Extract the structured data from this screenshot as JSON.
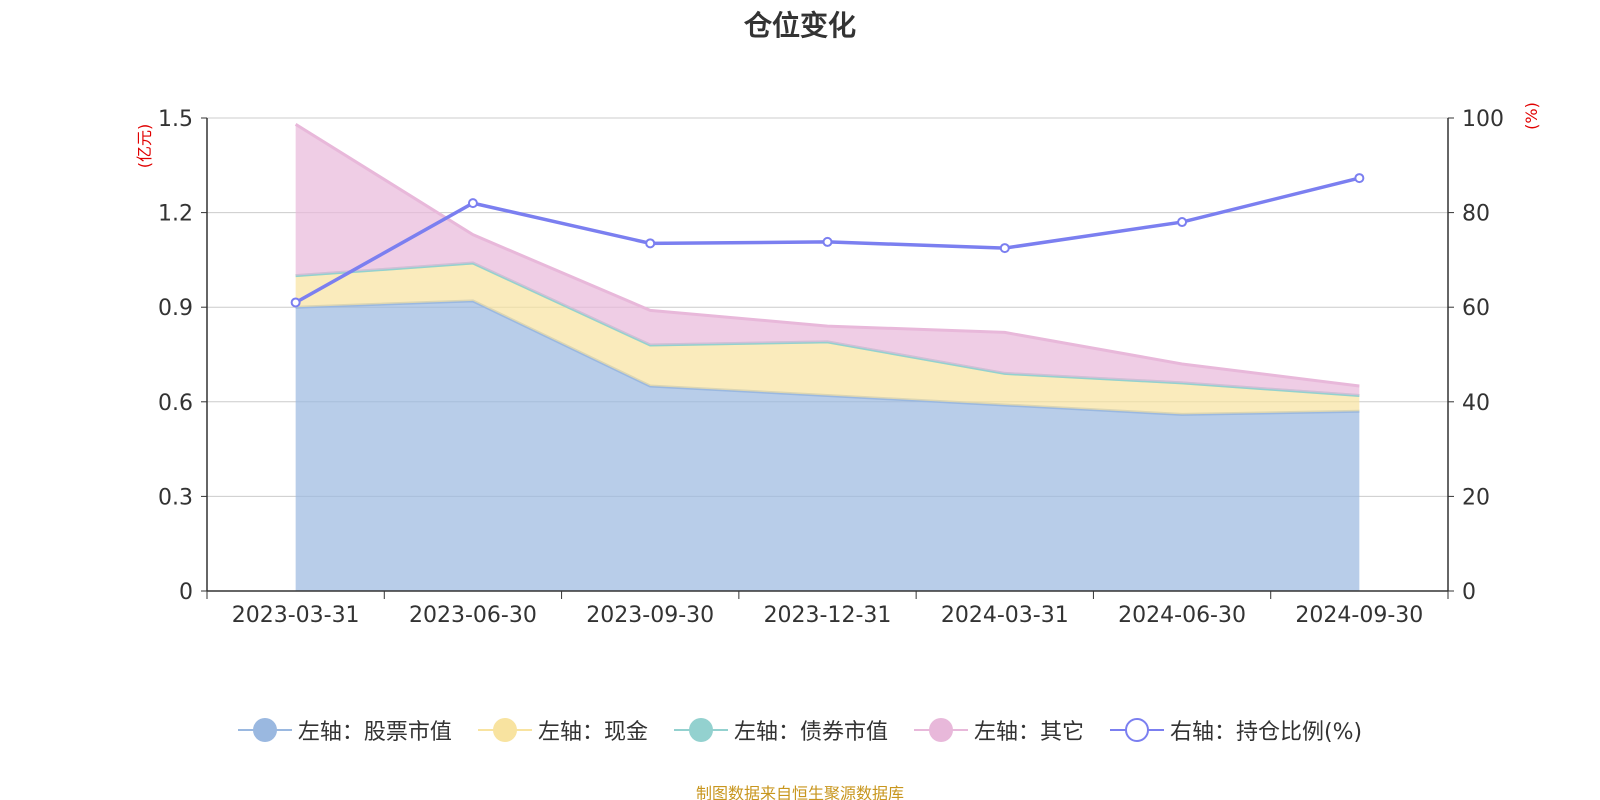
{
  "chart_data": {
    "type": "area",
    "title": "仓位变化",
    "categories": [
      "2023-03-31",
      "2023-06-30",
      "2023-09-30",
      "2023-12-31",
      "2024-03-31",
      "2024-06-30",
      "2024-09-30"
    ],
    "left_axis": {
      "unit": "(亿元)",
      "ylim": [
        0,
        1.5
      ],
      "ticks": [
        "0",
        "0.3",
        "0.6",
        "0.9",
        "1.2",
        "1.5"
      ],
      "tick_values": [
        0,
        0.3,
        0.6,
        0.9,
        1.2,
        1.5
      ]
    },
    "right_axis": {
      "unit": "(%)",
      "ylim": [
        0,
        100
      ],
      "ticks": [
        "0",
        "20",
        "40",
        "60",
        "80",
        "100"
      ],
      "tick_values": [
        0,
        20,
        40,
        60,
        80,
        100
      ]
    },
    "series": [
      {
        "name": "左轴：股票市值",
        "axis": "left",
        "stacked": true,
        "kind": "area",
        "color": "#9ab8e0",
        "values": [
          0.9,
          0.92,
          0.65,
          0.62,
          0.59,
          0.56,
          0.57
        ]
      },
      {
        "name": "左轴：现金",
        "axis": "left",
        "stacked": true,
        "kind": "area",
        "color": "#f8e3a0",
        "values": [
          0.1,
          0.12,
          0.13,
          0.17,
          0.1,
          0.1,
          0.05
        ]
      },
      {
        "name": "左轴：债券市值",
        "axis": "left",
        "stacked": true,
        "kind": "area",
        "color": "#93d1cf",
        "values": [
          0,
          0,
          0,
          0,
          0,
          0,
          0
        ]
      },
      {
        "name": "左轴：其它",
        "axis": "left",
        "stacked": true,
        "kind": "area",
        "color": "#e8b8da",
        "values": [
          0.48,
          0.09,
          0.11,
          0.05,
          0.13,
          0.06,
          0.03
        ]
      },
      {
        "name": "右轴：持仓比例(%)",
        "axis": "right",
        "stacked": false,
        "kind": "line",
        "color": "#7b7ff0",
        "values": [
          61.0,
          82.0,
          73.5,
          73.8,
          72.5,
          78.0,
          87.3
        ]
      }
    ],
    "legend_position": "bottom",
    "grid": true,
    "source": "制图数据来自恒生聚源数据库"
  }
}
